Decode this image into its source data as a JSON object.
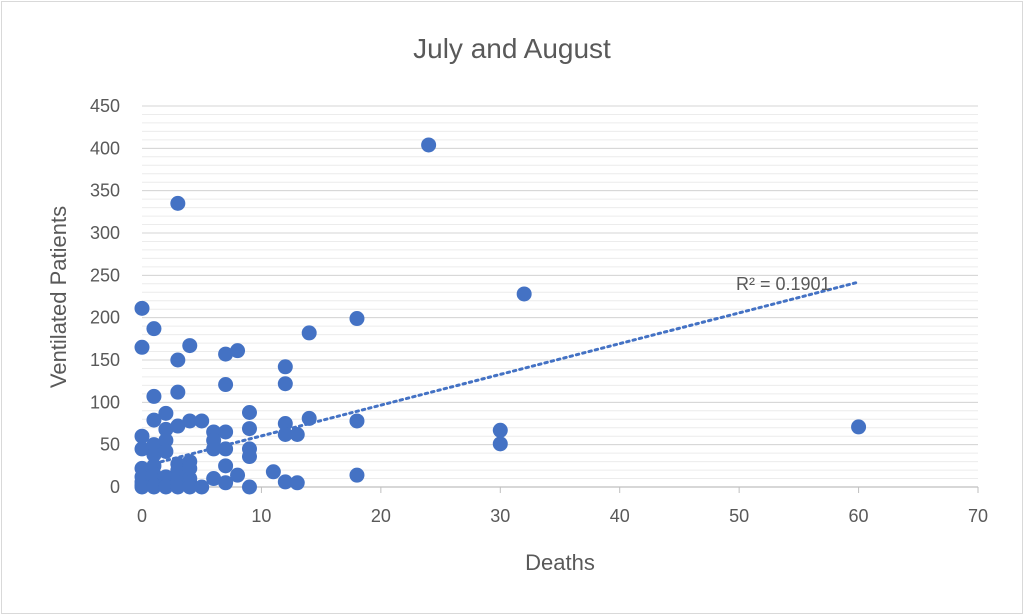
{
  "chart_data": {
    "type": "scatter",
    "title": "July and August",
    "xlabel": "Deaths",
    "ylabel": "Ventilated Patients",
    "xlim": [
      0,
      70
    ],
    "ylim": [
      0,
      450
    ],
    "x_ticks": [
      "0",
      "10",
      "20",
      "30",
      "40",
      "50",
      "60",
      "70"
    ],
    "y_ticks": [
      "0",
      "50",
      "100",
      "150",
      "200",
      "250",
      "300",
      "350",
      "400",
      "450"
    ],
    "grid": true,
    "legend": "none",
    "marker_color": "#4472c4",
    "trendline": {
      "type": "linear",
      "style": "dotted",
      "color": "#4472c4",
      "label": "R² = 0.1901",
      "x_range": [
        0,
        60
      ],
      "y_range": [
        24,
        242
      ]
    },
    "series": [
      {
        "points": [
          [
            0,
            211
          ],
          [
            0,
            165
          ],
          [
            0,
            60
          ],
          [
            0,
            45
          ],
          [
            0,
            22
          ],
          [
            0,
            12
          ],
          [
            0,
            6
          ],
          [
            0,
            2
          ],
          [
            0,
            0
          ],
          [
            1,
            187
          ],
          [
            1,
            107
          ],
          [
            1,
            79
          ],
          [
            1,
            50
          ],
          [
            1,
            38
          ],
          [
            1,
            25
          ],
          [
            1,
            15
          ],
          [
            1,
            8
          ],
          [
            1,
            2
          ],
          [
            1,
            0
          ],
          [
            2,
            87
          ],
          [
            2,
            68
          ],
          [
            2,
            55
          ],
          [
            2,
            42
          ],
          [
            2,
            12
          ],
          [
            2,
            5
          ],
          [
            2,
            1
          ],
          [
            2,
            0
          ],
          [
            3,
            335
          ],
          [
            3,
            150
          ],
          [
            3,
            112
          ],
          [
            3,
            72
          ],
          [
            3,
            27
          ],
          [
            3,
            20
          ],
          [
            3,
            12
          ],
          [
            3,
            5
          ],
          [
            3,
            0
          ],
          [
            4,
            167
          ],
          [
            4,
            78
          ],
          [
            4,
            30
          ],
          [
            4,
            22
          ],
          [
            4,
            10
          ],
          [
            4,
            5
          ],
          [
            4,
            0
          ],
          [
            5,
            78
          ],
          [
            5,
            0
          ],
          [
            6,
            65
          ],
          [
            6,
            55
          ],
          [
            6,
            45
          ],
          [
            6,
            10
          ],
          [
            7,
            157
          ],
          [
            7,
            121
          ],
          [
            7,
            65
          ],
          [
            7,
            45
          ],
          [
            7,
            25
          ],
          [
            7,
            5
          ],
          [
            8,
            161
          ],
          [
            8,
            14
          ],
          [
            9,
            88
          ],
          [
            9,
            69
          ],
          [
            9,
            45
          ],
          [
            9,
            36
          ],
          [
            9,
            0
          ],
          [
            11,
            18
          ],
          [
            12,
            142
          ],
          [
            12,
            122
          ],
          [
            12,
            75
          ],
          [
            12,
            62
          ],
          [
            12,
            6
          ],
          [
            13,
            62
          ],
          [
            13,
            5
          ],
          [
            14,
            182
          ],
          [
            14,
            81
          ],
          [
            18,
            199
          ],
          [
            18,
            78
          ],
          [
            18,
            14
          ],
          [
            24,
            404
          ],
          [
            30,
            67
          ],
          [
            30,
            51
          ],
          [
            32,
            228
          ],
          [
            60,
            71
          ]
        ]
      }
    ]
  }
}
